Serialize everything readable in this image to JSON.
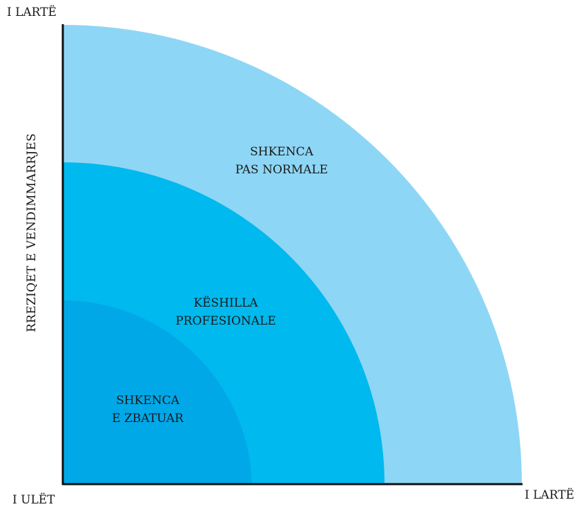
{
  "diagram": {
    "y_axis": {
      "label": "RREZIQET E VENDIMMARRJES",
      "top_label": "I LARTË"
    },
    "x_axis": {
      "origin_label": "I ULËT",
      "right_label": "I LARTË"
    },
    "bands": [
      {
        "id": "post-normal",
        "lines": [
          "SHKENCA",
          "PAS NORMALE"
        ],
        "color": "#8ed6f5"
      },
      {
        "id": "professional",
        "lines": [
          "KËSHILLA",
          "PROFESIONALE"
        ],
        "color": "#00b9ee"
      },
      {
        "id": "applied",
        "lines": [
          "SHKENCA",
          "E ZBATUAR"
        ],
        "color": "#00a8e8"
      }
    ],
    "axis_color": "#111111"
  }
}
